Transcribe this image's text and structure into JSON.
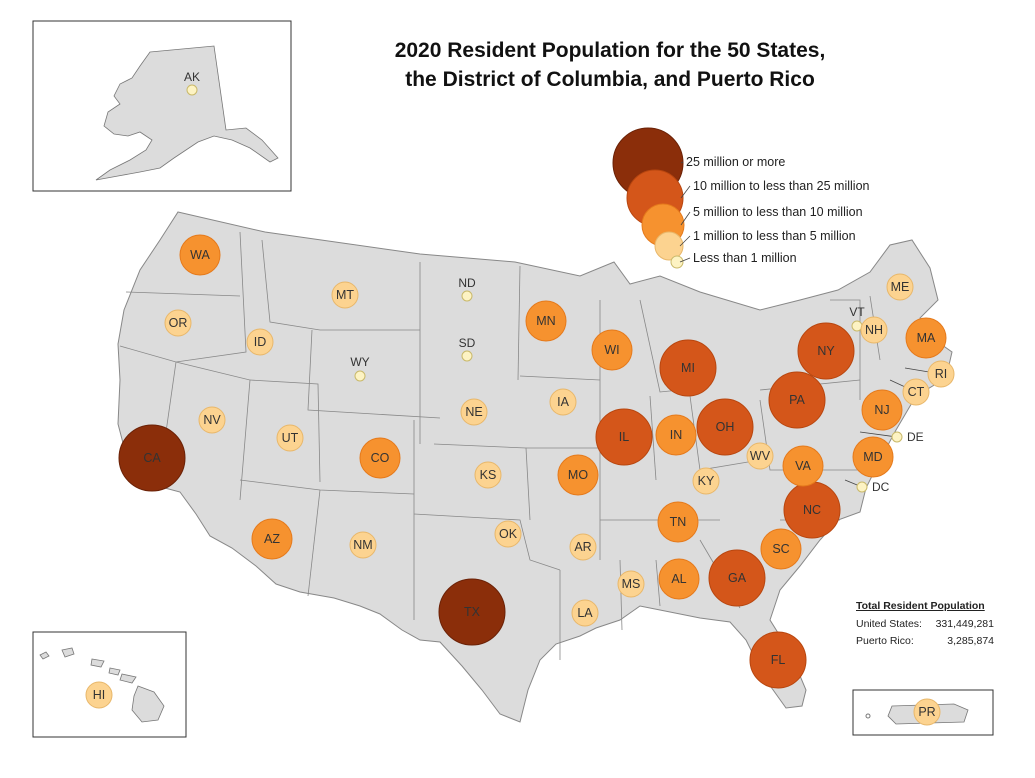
{
  "title_line1": "2020 Resident Population for the 50 States,",
  "title_line2": "the District of Columbia, and Puerto Rico",
  "legend": [
    {
      "label": "25 million or more",
      "color": "#8b2e0a"
    },
    {
      "label": "10 million to less than 25 million",
      "color": "#d4561a"
    },
    {
      "label": "5 million to less than 10 million",
      "color": "#f6922f"
    },
    {
      "label": "1 million to less than 5 million",
      "color": "#fcd390"
    },
    {
      "label": "Less than 1 million",
      "color": "#fdf3c3"
    }
  ],
  "states": [
    {
      "abbr": "WA",
      "cls": 2
    },
    {
      "abbr": "OR",
      "cls": 3
    },
    {
      "abbr": "CA",
      "cls": 0
    },
    {
      "abbr": "ID",
      "cls": 3
    },
    {
      "abbr": "NV",
      "cls": 3
    },
    {
      "abbr": "MT",
      "cls": 3
    },
    {
      "abbr": "WY",
      "cls": 4
    },
    {
      "abbr": "UT",
      "cls": 3
    },
    {
      "abbr": "AZ",
      "cls": 2
    },
    {
      "abbr": "CO",
      "cls": 2
    },
    {
      "abbr": "NM",
      "cls": 3
    },
    {
      "abbr": "ND",
      "cls": 4
    },
    {
      "abbr": "SD",
      "cls": 4
    },
    {
      "abbr": "NE",
      "cls": 3
    },
    {
      "abbr": "KS",
      "cls": 3
    },
    {
      "abbr": "OK",
      "cls": 3
    },
    {
      "abbr": "TX",
      "cls": 0
    },
    {
      "abbr": "MN",
      "cls": 2
    },
    {
      "abbr": "IA",
      "cls": 3
    },
    {
      "abbr": "MO",
      "cls": 2
    },
    {
      "abbr": "AR",
      "cls": 3
    },
    {
      "abbr": "LA",
      "cls": 3
    },
    {
      "abbr": "WI",
      "cls": 2
    },
    {
      "abbr": "IL",
      "cls": 1
    },
    {
      "abbr": "MI",
      "cls": 1
    },
    {
      "abbr": "IN",
      "cls": 2
    },
    {
      "abbr": "OH",
      "cls": 1
    },
    {
      "abbr": "KY",
      "cls": 3
    },
    {
      "abbr": "TN",
      "cls": 2
    },
    {
      "abbr": "MS",
      "cls": 3
    },
    {
      "abbr": "AL",
      "cls": 2
    },
    {
      "abbr": "GA",
      "cls": 1
    },
    {
      "abbr": "FL",
      "cls": 1
    },
    {
      "abbr": "SC",
      "cls": 2
    },
    {
      "abbr": "NC",
      "cls": 1
    },
    {
      "abbr": "VA",
      "cls": 2
    },
    {
      "abbr": "WV",
      "cls": 3
    },
    {
      "abbr": "PA",
      "cls": 1
    },
    {
      "abbr": "NY",
      "cls": 1
    },
    {
      "abbr": "NJ",
      "cls": 2
    },
    {
      "abbr": "MD",
      "cls": 2
    },
    {
      "abbr": "DE",
      "cls": 4
    },
    {
      "abbr": "DC",
      "cls": 4
    },
    {
      "abbr": "CT",
      "cls": 3
    },
    {
      "abbr": "RI",
      "cls": 3
    },
    {
      "abbr": "MA",
      "cls": 2
    },
    {
      "abbr": "VT",
      "cls": 4
    },
    {
      "abbr": "NH",
      "cls": 3
    },
    {
      "abbr": "ME",
      "cls": 3
    },
    {
      "abbr": "AK",
      "cls": 4
    },
    {
      "abbr": "HI",
      "cls": 3
    },
    {
      "abbr": "PR",
      "cls": 3
    }
  ],
  "totals": {
    "heading": "Total Resident Population",
    "us_label": "United States:",
    "us_value": "331,449,281",
    "pr_label": "Puerto Rico:",
    "pr_value": "3,285,874"
  }
}
